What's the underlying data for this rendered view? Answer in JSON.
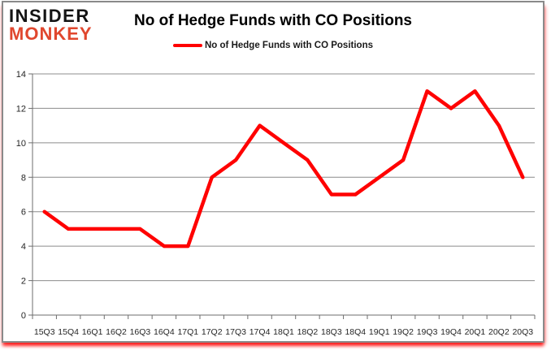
{
  "logo": {
    "line1": "INSIDER",
    "line2": "MONKEY"
  },
  "header": {
    "title": "No of Hedge Funds with CO Positions"
  },
  "legend": {
    "label": "No of Hedge Funds with CO Positions",
    "color": "#ff0000"
  },
  "colors": {
    "line": "#ff0000",
    "grid": "#8c8c8c",
    "axis": "#6e6e6e",
    "tick_text": "#262626",
    "logo_red": "#e0472e",
    "frame_border": "#8a8a8a",
    "bottom_glow": "#ff0000"
  },
  "chart_data": {
    "type": "line",
    "title": "No of Hedge Funds with CO Positions",
    "series_name": "No of Hedge Funds with CO Positions",
    "categories": [
      "15Q3",
      "15Q4",
      "16Q1",
      "16Q2",
      "16Q3",
      "16Q4",
      "17Q1",
      "17Q2",
      "17Q3",
      "17Q4",
      "18Q1",
      "18Q2",
      "18Q3",
      "18Q4",
      "19Q1",
      "19Q2",
      "19Q3",
      "19Q4",
      "20Q1",
      "20Q2",
      "20Q3"
    ],
    "values": [
      6,
      5,
      5,
      5,
      5,
      4,
      4,
      8,
      9,
      11,
      10,
      9,
      7,
      7,
      8,
      9,
      13,
      12,
      13,
      11,
      8
    ],
    "xlabel": "",
    "ylabel": "",
    "ylim": [
      0,
      14
    ],
    "yticks": [
      0,
      2,
      4,
      6,
      8,
      10,
      12,
      14
    ],
    "grid": true,
    "legend_position": "top"
  }
}
